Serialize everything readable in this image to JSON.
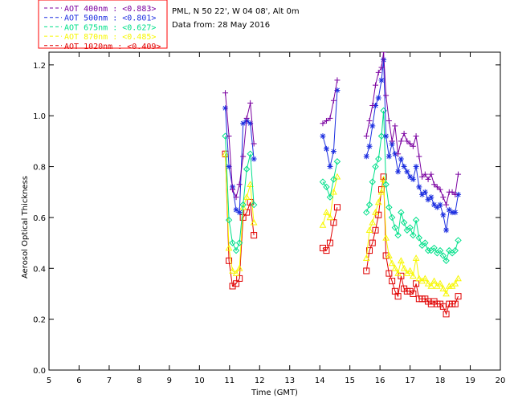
{
  "chart_data": {
    "type": "line",
    "station": "PML, N 50 22', W 04 08', Alt 0m",
    "date_text": "Data from: 28 May 2016",
    "xlabel": "Time (GMT)",
    "ylabel": "Aerosol Optical Thickness",
    "xlim": [
      5,
      20
    ],
    "ylim": [
      0.0,
      1.25
    ],
    "xticks": [
      "5",
      "6",
      "7",
      "8",
      "9",
      "10",
      "11",
      "12",
      "13",
      "14",
      "15",
      "16",
      "17",
      "18",
      "19",
      "20"
    ],
    "yticks": [
      "0.0",
      "0.2",
      "0.4",
      "0.6",
      "0.8",
      "1.0",
      "1.2"
    ],
    "grid": false,
    "legend_position": "top-left",
    "series": [
      {
        "name": "AOT  400nm : <0.883>",
        "color": "#7a00a0",
        "marker": "plus",
        "points": [
          [
            10.86,
            1.09
          ],
          [
            10.98,
            0.92
          ],
          [
            11.1,
            0.71
          ],
          [
            11.22,
            0.68
          ],
          [
            11.33,
            0.73
          ],
          [
            11.45,
            0.84
          ],
          [
            11.57,
            0.99
          ],
          [
            11.69,
            1.05
          ],
          [
            11.81,
            0.89
          ],
          [
            14.1,
            0.97
          ],
          [
            14.22,
            0.98
          ],
          [
            14.34,
            0.99
          ],
          [
            14.46,
            1.06
          ],
          [
            14.58,
            1.14
          ],
          [
            15.55,
            0.92
          ],
          [
            15.65,
            0.98
          ],
          [
            15.75,
            1.04
          ],
          [
            15.85,
            1.12
          ],
          [
            15.95,
            1.17
          ],
          [
            16.05,
            1.19
          ],
          [
            16.12,
            1.25
          ],
          [
            16.2,
            1.08
          ],
          [
            16.3,
            0.98
          ],
          [
            16.4,
            0.9
          ],
          [
            16.5,
            0.96
          ],
          [
            16.6,
            0.85
          ],
          [
            16.7,
            0.9
          ],
          [
            16.8,
            0.93
          ],
          [
            16.9,
            0.9
          ],
          [
            17.0,
            0.89
          ],
          [
            17.1,
            0.88
          ],
          [
            17.2,
            0.92
          ],
          [
            17.3,
            0.84
          ],
          [
            17.4,
            0.76
          ],
          [
            17.5,
            0.77
          ],
          [
            17.6,
            0.75
          ],
          [
            17.7,
            0.77
          ],
          [
            17.8,
            0.73
          ],
          [
            17.9,
            0.72
          ],
          [
            18.0,
            0.71
          ],
          [
            18.1,
            0.68
          ],
          [
            18.2,
            0.65
          ],
          [
            18.3,
            0.7
          ],
          [
            18.4,
            0.7
          ],
          [
            18.5,
            0.69
          ],
          [
            18.6,
            0.77
          ]
        ]
      },
      {
        "name": "AOT  500nm : <0.801>",
        "color": "#1c2ee0",
        "marker": "star",
        "points": [
          [
            10.86,
            1.03
          ],
          [
            10.98,
            0.8
          ],
          [
            11.1,
            0.72
          ],
          [
            11.22,
            0.63
          ],
          [
            11.33,
            0.62
          ],
          [
            11.45,
            0.97
          ],
          [
            11.57,
            0.98
          ],
          [
            11.69,
            0.97
          ],
          [
            11.81,
            0.83
          ],
          [
            14.1,
            0.92
          ],
          [
            14.22,
            0.87
          ],
          [
            14.34,
            0.8
          ],
          [
            14.46,
            0.86
          ],
          [
            14.58,
            1.1
          ],
          [
            15.55,
            0.84
          ],
          [
            15.65,
            0.88
          ],
          [
            15.75,
            0.96
          ],
          [
            15.85,
            1.04
          ],
          [
            15.95,
            1.07
          ],
          [
            16.05,
            1.14
          ],
          [
            16.12,
            1.22
          ],
          [
            16.2,
            0.92
          ],
          [
            16.3,
            0.84
          ],
          [
            16.4,
            0.89
          ],
          [
            16.5,
            0.85
          ],
          [
            16.6,
            0.78
          ],
          [
            16.7,
            0.83
          ],
          [
            16.8,
            0.8
          ],
          [
            16.9,
            0.78
          ],
          [
            17.0,
            0.76
          ],
          [
            17.1,
            0.75
          ],
          [
            17.2,
            0.8
          ],
          [
            17.3,
            0.72
          ],
          [
            17.4,
            0.69
          ],
          [
            17.5,
            0.7
          ],
          [
            17.6,
            0.67
          ],
          [
            17.7,
            0.68
          ],
          [
            17.8,
            0.65
          ],
          [
            17.9,
            0.64
          ],
          [
            18.0,
            0.65
          ],
          [
            18.1,
            0.61
          ],
          [
            18.2,
            0.55
          ],
          [
            18.3,
            0.63
          ],
          [
            18.4,
            0.62
          ],
          [
            18.5,
            0.62
          ],
          [
            18.6,
            0.69
          ]
        ]
      },
      {
        "name": "AOT  675nm : <0.627>",
        "color": "#00e08a",
        "marker": "diamond",
        "points": [
          [
            10.86,
            0.92
          ],
          [
            10.98,
            0.59
          ],
          [
            11.1,
            0.5
          ],
          [
            11.22,
            0.47
          ],
          [
            11.33,
            0.5
          ],
          [
            11.45,
            0.65
          ],
          [
            11.57,
            0.79
          ],
          [
            11.69,
            0.85
          ],
          [
            11.81,
            0.65
          ],
          [
            14.1,
            0.74
          ],
          [
            14.22,
            0.72
          ],
          [
            14.34,
            0.68
          ],
          [
            14.46,
            0.75
          ],
          [
            14.58,
            0.82
          ],
          [
            15.55,
            0.62
          ],
          [
            15.65,
            0.65
          ],
          [
            15.75,
            0.74
          ],
          [
            15.85,
            0.8
          ],
          [
            15.95,
            0.83
          ],
          [
            16.05,
            0.92
          ],
          [
            16.12,
            1.02
          ],
          [
            16.2,
            0.73
          ],
          [
            16.3,
            0.64
          ],
          [
            16.4,
            0.6
          ],
          [
            16.5,
            0.56
          ],
          [
            16.6,
            0.53
          ],
          [
            16.7,
            0.62
          ],
          [
            16.8,
            0.58
          ],
          [
            16.9,
            0.55
          ],
          [
            17.0,
            0.56
          ],
          [
            17.1,
            0.53
          ],
          [
            17.2,
            0.59
          ],
          [
            17.3,
            0.52
          ],
          [
            17.4,
            0.49
          ],
          [
            17.5,
            0.5
          ],
          [
            17.6,
            0.47
          ],
          [
            17.7,
            0.47
          ],
          [
            17.8,
            0.48
          ],
          [
            17.9,
            0.46
          ],
          [
            18.0,
            0.47
          ],
          [
            18.1,
            0.45
          ],
          [
            18.2,
            0.43
          ],
          [
            18.3,
            0.47
          ],
          [
            18.4,
            0.46
          ],
          [
            18.5,
            0.47
          ],
          [
            18.6,
            0.51
          ]
        ]
      },
      {
        "name": "AOT  870nm : <0.485>",
        "color": "#f7f700",
        "marker": "triangle",
        "points": [
          [
            10.86,
            0.85
          ],
          [
            10.98,
            0.48
          ],
          [
            11.1,
            0.39
          ],
          [
            11.22,
            0.38
          ],
          [
            11.33,
            0.4
          ],
          [
            11.45,
            0.64
          ],
          [
            11.57,
            0.68
          ],
          [
            11.69,
            0.73
          ],
          [
            11.81,
            0.58
          ],
          [
            14.1,
            0.57
          ],
          [
            14.22,
            0.62
          ],
          [
            14.34,
            0.6
          ],
          [
            14.46,
            0.7
          ],
          [
            14.58,
            0.76
          ],
          [
            15.55,
            0.44
          ],
          [
            15.65,
            0.55
          ],
          [
            15.75,
            0.58
          ],
          [
            15.85,
            0.62
          ],
          [
            15.95,
            0.66
          ],
          [
            16.05,
            0.7
          ],
          [
            16.12,
            0.75
          ],
          [
            16.2,
            0.52
          ],
          [
            16.3,
            0.45
          ],
          [
            16.4,
            0.42
          ],
          [
            16.5,
            0.4
          ],
          [
            16.6,
            0.38
          ],
          [
            16.7,
            0.43
          ],
          [
            16.8,
            0.4
          ],
          [
            16.9,
            0.38
          ],
          [
            17.0,
            0.39
          ],
          [
            17.1,
            0.37
          ],
          [
            17.2,
            0.44
          ],
          [
            17.3,
            0.36
          ],
          [
            17.4,
            0.35
          ],
          [
            17.5,
            0.36
          ],
          [
            17.6,
            0.34
          ],
          [
            17.7,
            0.33
          ],
          [
            17.8,
            0.35
          ],
          [
            17.9,
            0.33
          ],
          [
            18.0,
            0.34
          ],
          [
            18.1,
            0.32
          ],
          [
            18.2,
            0.3
          ],
          [
            18.3,
            0.33
          ],
          [
            18.4,
            0.33
          ],
          [
            18.5,
            0.34
          ],
          [
            18.6,
            0.36
          ]
        ]
      },
      {
        "name": "AOT 1020nm : <0.409>",
        "color": "#e00000",
        "marker": "square",
        "points": [
          [
            10.86,
            0.85
          ],
          [
            10.98,
            0.43
          ],
          [
            11.1,
            0.33
          ],
          [
            11.22,
            0.34
          ],
          [
            11.33,
            0.36
          ],
          [
            11.45,
            0.6
          ],
          [
            11.57,
            0.62
          ],
          [
            11.69,
            0.66
          ],
          [
            11.81,
            0.53
          ],
          [
            14.1,
            0.48
          ],
          [
            14.22,
            0.47
          ],
          [
            14.34,
            0.5
          ],
          [
            14.46,
            0.58
          ],
          [
            14.58,
            0.64
          ],
          [
            15.55,
            0.39
          ],
          [
            15.65,
            0.47
          ],
          [
            15.75,
            0.5
          ],
          [
            15.85,
            0.55
          ],
          [
            15.95,
            0.61
          ],
          [
            16.05,
            0.71
          ],
          [
            16.12,
            0.76
          ],
          [
            16.2,
            0.45
          ],
          [
            16.3,
            0.38
          ],
          [
            16.4,
            0.35
          ],
          [
            16.5,
            0.31
          ],
          [
            16.6,
            0.29
          ],
          [
            16.7,
            0.37
          ],
          [
            16.8,
            0.32
          ],
          [
            16.9,
            0.31
          ],
          [
            17.0,
            0.31
          ],
          [
            17.1,
            0.3
          ],
          [
            17.2,
            0.34
          ],
          [
            17.3,
            0.28
          ],
          [
            17.4,
            0.28
          ],
          [
            17.5,
            0.28
          ],
          [
            17.6,
            0.27
          ],
          [
            17.7,
            0.26
          ],
          [
            17.8,
            0.27
          ],
          [
            17.9,
            0.26
          ],
          [
            18.0,
            0.26
          ],
          [
            18.1,
            0.25
          ],
          [
            18.2,
            0.22
          ],
          [
            18.3,
            0.26
          ],
          [
            18.4,
            0.26
          ],
          [
            18.5,
            0.26
          ],
          [
            18.6,
            0.29
          ]
        ]
      }
    ]
  }
}
